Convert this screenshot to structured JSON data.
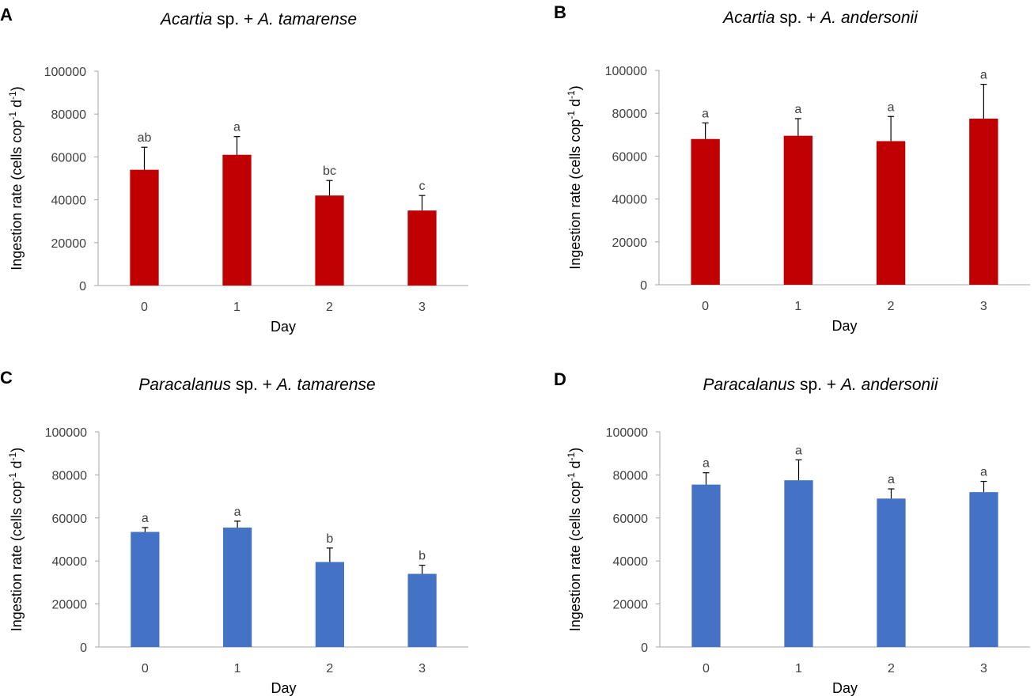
{
  "colors": {
    "red": "#c00000",
    "blue": "#4472c4"
  },
  "chart_data": [
    {
      "panel": "A",
      "type": "bar",
      "title": {
        "italic1": "Acartia",
        "plain": " sp. + ",
        "italic2": "A. tamarense"
      },
      "xlabel": "Day",
      "ylabel": {
        "main": "Ingestion rate (cells cop",
        "sup1": "-1",
        "mid": " d",
        "sup2": "-1",
        "end": ")"
      },
      "categories": [
        "0",
        "1",
        "2",
        "3"
      ],
      "values": [
        54000,
        61000,
        42000,
        35000
      ],
      "errors": [
        10500,
        8500,
        7000,
        7000
      ],
      "letters": [
        "ab",
        "a",
        "bc",
        "c"
      ],
      "yticks": [
        "0",
        "20000",
        "40000",
        "60000",
        "80000",
        "100000"
      ],
      "ylim": [
        0,
        100000
      ],
      "color": "#c00000"
    },
    {
      "panel": "B",
      "type": "bar",
      "title": {
        "italic1": "Acartia",
        "plain": " sp. + ",
        "italic2": "A. andersonii"
      },
      "xlabel": "Day",
      "ylabel": {
        "main": "Ingestion rate (cells cop",
        "sup1": "-1",
        "mid": " d",
        "sup2": "-1",
        "end": ")"
      },
      "categories": [
        "0",
        "1",
        "2",
        "3"
      ],
      "values": [
        68000,
        69500,
        67000,
        77500
      ],
      "errors": [
        7500,
        8000,
        11500,
        16000
      ],
      "letters": [
        "a",
        "a",
        "a",
        "a"
      ],
      "yticks": [
        "0",
        "20000",
        "40000",
        "60000",
        "80000",
        "100000"
      ],
      "ylim": [
        0,
        100000
      ],
      "color": "#c00000"
    },
    {
      "panel": "C",
      "type": "bar",
      "title": {
        "italic1": "Paracalanus",
        "plain": " sp. + ",
        "italic2": "A. tamarense"
      },
      "xlabel": "Day",
      "ylabel": {
        "main": "Ingestion rate (cells cop",
        "sup1": "-1",
        "mid": " d",
        "sup2": "-1",
        "end": ")"
      },
      "categories": [
        "0",
        "1",
        "2",
        "3"
      ],
      "values": [
        53500,
        55500,
        39500,
        34000
      ],
      "errors": [
        2000,
        3000,
        6500,
        4000
      ],
      "letters": [
        "a",
        "a",
        "b",
        "b"
      ],
      "yticks": [
        "0",
        "20000",
        "40000",
        "60000",
        "80000",
        "100000"
      ],
      "ylim": [
        0,
        100000
      ],
      "color": "#4472c4"
    },
    {
      "panel": "D",
      "type": "bar",
      "title": {
        "italic1": "Paracalanus",
        "plain": " sp. + ",
        "italic2": "A. andersonii"
      },
      "xlabel": "Day",
      "ylabel": {
        "main": "Ingestion rate (cells cop",
        "sup1": "-1",
        "mid": " d",
        "sup2": "-1",
        "end": ")"
      },
      "categories": [
        "0",
        "1",
        "2",
        "3"
      ],
      "values": [
        75500,
        77500,
        69000,
        72000
      ],
      "errors": [
        5500,
        9500,
        4500,
        5000
      ],
      "letters": [
        "a",
        "a",
        "a",
        "a"
      ],
      "yticks": [
        "0",
        "20000",
        "40000",
        "60000",
        "80000",
        "100000"
      ],
      "ylim": [
        0,
        100000
      ],
      "color": "#4472c4"
    }
  ]
}
